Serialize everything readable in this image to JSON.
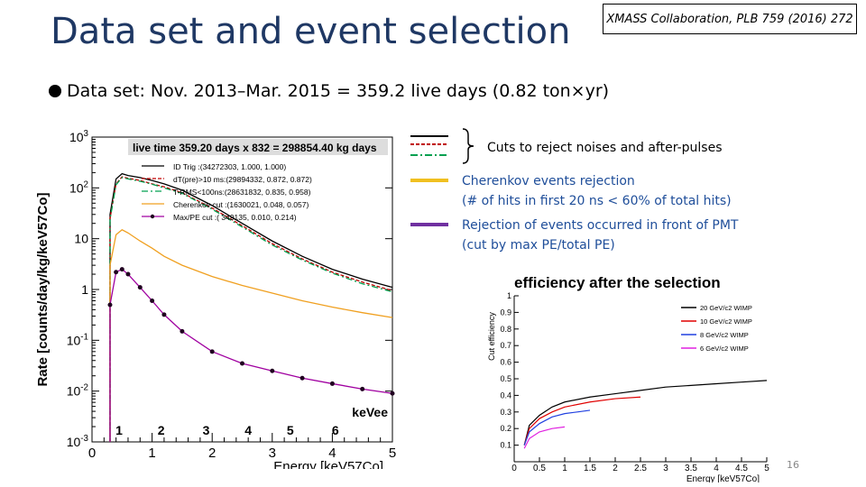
{
  "slide": {
    "title": "Data set and event selection",
    "citation": "XMASS Collaboration, PLB 759 (2016) 272",
    "bullet": "Data set: Nov. 2013–Mar. 2015 = 359.2 live days (0.82 ton×yr)",
    "page_number": "16"
  },
  "cut_legend": {
    "noise_cuts": "Cuts to reject noises and after-pulses",
    "cherenkov_line1": "Cherenkov events rejection",
    "cherenkov_line2": "(# of hits in first 20 ns < 60% of total hits)",
    "maxpe_line1": "Rejection of events occurred in front of PMT",
    "maxpe_line2": "(cut by max PE/total PE)"
  },
  "colors": {
    "title": "#1f3864",
    "cut_text": "#1f4e9a",
    "cherenkov": "#f0c020",
    "maxpe": "#7030a0",
    "noise_red": "#c00000",
    "noise_green": "#00a050"
  },
  "chart_data": [
    {
      "type": "line",
      "title": "live time 359.20 days x 832 = 298854.40 kg days",
      "xlabel": "Energy [keV57Co]",
      "ylabel": "Rate [counts/day/kg/keV57Co]",
      "xlim": [
        0,
        5
      ],
      "ylim": [
        0.001,
        1000
      ],
      "yscale": "log",
      "x_ticks": [
        "0",
        "1",
        "2",
        "3",
        "4",
        "5"
      ],
      "y_ticks": [
        "10-3",
        "10-2",
        "10-1",
        "1",
        "10",
        "102",
        "103"
      ],
      "kevee_axis": {
        "label": "keVee",
        "ticks": [
          "1",
          "2",
          "3",
          "4",
          "5",
          "6"
        ],
        "positions_kev57co": [
          0.45,
          1.15,
          1.9,
          2.6,
          3.3,
          4.05
        ]
      },
      "x": [
        0.3,
        0.4,
        0.5,
        0.6,
        0.8,
        1.0,
        1.2,
        1.5,
        2.0,
        2.5,
        3.0,
        3.5,
        4.0,
        4.5,
        5.0
      ],
      "series": [
        {
          "name": "ID Trig",
          "legend": "ID Trig      :(34272303, 1.000, 1.000)",
          "color": "#000000",
          "style": "solid",
          "values": [
            30,
            150,
            190,
            175,
            160,
            140,
            120,
            90,
            45,
            20,
            9,
            4.5,
            2.5,
            1.6,
            1.1
          ]
        },
        {
          "name": "dT(pre)>10 ms",
          "legend": "dT(pre)>10 ms:(29894332, 0.872, 0.872)",
          "color": "#c00000",
          "style": "dashed",
          "values": [
            25,
            120,
            165,
            155,
            140,
            120,
            105,
            80,
            40,
            18,
            8,
            4,
            2.2,
            1.4,
            0.95
          ]
        },
        {
          "name": "T-RMS<100 ns",
          "legend": "T-RMS<100ns:(28631832, 0.835, 0.958)",
          "color": "#00a050",
          "style": "dashdot",
          "values": [
            24,
            115,
            160,
            150,
            135,
            118,
            100,
            78,
            38,
            17,
            7.5,
            3.8,
            2.1,
            1.3,
            0.9
          ]
        },
        {
          "name": "Cherenkov cut",
          "legend": "Cherenkov cut :(1630021, 0.048, 0.057)",
          "color": "#f0a020",
          "style": "solid",
          "values": [
            3,
            12,
            15,
            13,
            9,
            6.5,
            4.5,
            3.0,
            1.8,
            1.2,
            0.85,
            0.6,
            0.45,
            0.35,
            0.28
          ]
        },
        {
          "name": "Max/PE cut",
          "legend": "Max/PE cut :( 349135, 0.010, 0.214)",
          "color": "#a000a0",
          "style": "markers",
          "values": [
            0.5,
            2.2,
            2.5,
            2.0,
            1.1,
            0.6,
            0.32,
            0.15,
            0.06,
            0.035,
            0.025,
            0.018,
            0.014,
            0.011,
            0.009
          ]
        }
      ]
    },
    {
      "type": "line",
      "title": "efficiency after the selection",
      "xlabel": "Energy [keV57Co]",
      "ylabel": "Cut efficiency",
      "xlim": [
        0,
        5
      ],
      "ylim": [
        0,
        1
      ],
      "x_ticks": [
        "0",
        "0.5",
        "1",
        "1.5",
        "2",
        "2.5",
        "3",
        "3.5",
        "4",
        "4.5",
        "5"
      ],
      "y_ticks": [
        "0.1",
        "0.2",
        "0.3",
        "0.4",
        "0.5",
        "0.6",
        "0.7",
        "0.8",
        "0.9",
        "1"
      ],
      "series": [
        {
          "name": "20 GeV/c2 WIMP",
          "color": "#000000",
          "x": [
            0.2,
            0.3,
            0.5,
            0.75,
            1.0,
            1.5,
            2.0,
            2.5,
            3.0,
            3.5,
            4.0,
            4.5,
            5.0
          ],
          "values": [
            0.1,
            0.22,
            0.28,
            0.33,
            0.36,
            0.39,
            0.41,
            0.43,
            0.45,
            0.46,
            0.47,
            0.48,
            0.49
          ]
        },
        {
          "name": "10 GeV/c2 WIMP",
          "color": "#e00000",
          "x": [
            0.2,
            0.3,
            0.5,
            0.75,
            1.0,
            1.5,
            2.0,
            2.5
          ],
          "values": [
            0.1,
            0.2,
            0.26,
            0.3,
            0.33,
            0.36,
            0.38,
            0.39
          ]
        },
        {
          "name": "8 GeV/c2 WIMP",
          "color": "#2040e0",
          "x": [
            0.2,
            0.3,
            0.5,
            0.75,
            1.0,
            1.25,
            1.5
          ],
          "values": [
            0.1,
            0.18,
            0.23,
            0.27,
            0.29,
            0.3,
            0.31
          ]
        },
        {
          "name": "6 GeV/c2 WIMP",
          "color": "#e020e0",
          "x": [
            0.2,
            0.3,
            0.5,
            0.75,
            1.0
          ],
          "values": [
            0.08,
            0.14,
            0.18,
            0.2,
            0.21
          ]
        }
      ]
    }
  ]
}
